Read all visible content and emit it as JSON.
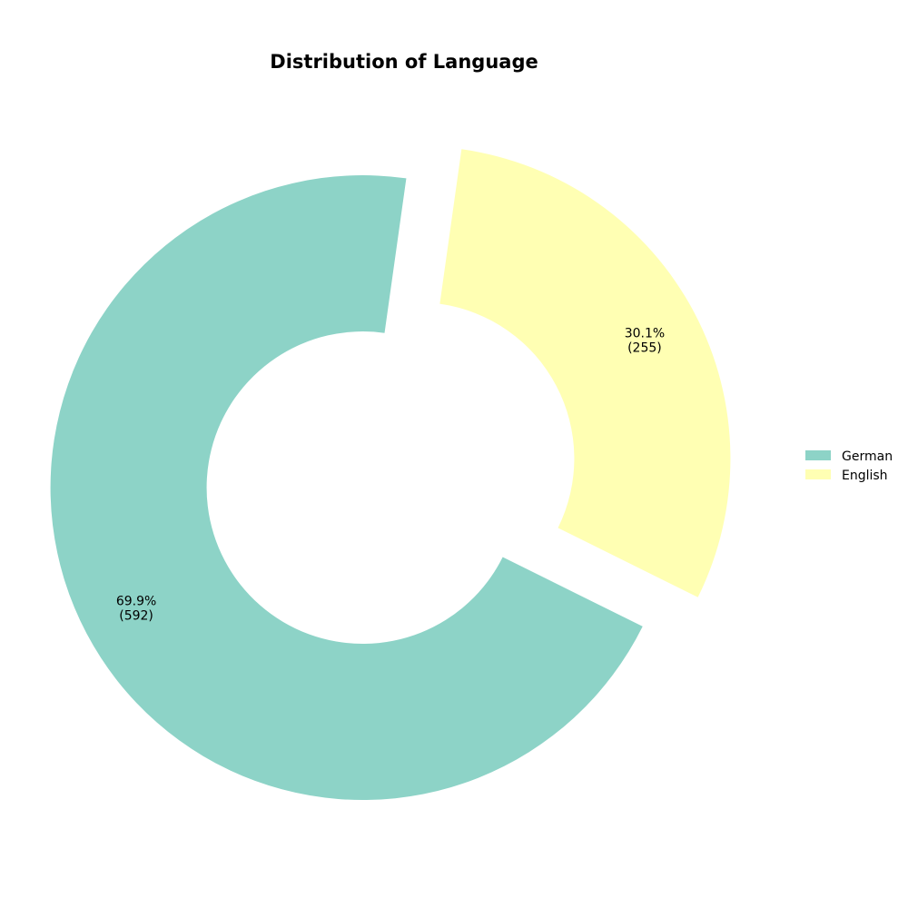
{
  "chart_data": {
    "type": "pie",
    "variant": "donut",
    "title": "Distribution of Language",
    "slices": [
      {
        "label": "German",
        "value": 592,
        "percent_label": "69.9%",
        "count_label": "(592)",
        "color": "#8dd3c7"
      },
      {
        "label": "English",
        "value": 255,
        "percent_label": "30.1%",
        "count_label": "(255)",
        "color": "#ffffb3"
      }
    ],
    "legend": {
      "position": "right",
      "entries": [
        "German",
        "English"
      ]
    },
    "exploded": true
  }
}
